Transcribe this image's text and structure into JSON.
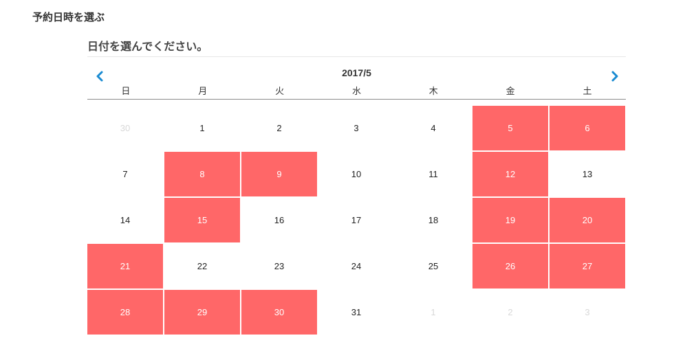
{
  "page": {
    "heading": "予約日時を選ぶ",
    "section_title": "日付を選んでください。"
  },
  "calendar": {
    "month_label": "2017/5",
    "prev_icon": "chevron-left-icon",
    "next_icon": "chevron-right-icon",
    "accent_color": "#1a8bd2",
    "available_color": "#ff6768",
    "weekdays": [
      "日",
      "月",
      "火",
      "水",
      "木",
      "金",
      "土"
    ],
    "days": [
      {
        "label": "30",
        "state": "other"
      },
      {
        "label": "1",
        "state": "normal"
      },
      {
        "label": "2",
        "state": "normal"
      },
      {
        "label": "3",
        "state": "normal"
      },
      {
        "label": "4",
        "state": "normal"
      },
      {
        "label": "5",
        "state": "available"
      },
      {
        "label": "6",
        "state": "available"
      },
      {
        "label": "7",
        "state": "normal"
      },
      {
        "label": "8",
        "state": "available"
      },
      {
        "label": "9",
        "state": "available"
      },
      {
        "label": "10",
        "state": "normal"
      },
      {
        "label": "11",
        "state": "normal"
      },
      {
        "label": "12",
        "state": "available"
      },
      {
        "label": "13",
        "state": "normal"
      },
      {
        "label": "14",
        "state": "normal"
      },
      {
        "label": "15",
        "state": "available"
      },
      {
        "label": "16",
        "state": "normal"
      },
      {
        "label": "17",
        "state": "normal"
      },
      {
        "label": "18",
        "state": "normal"
      },
      {
        "label": "19",
        "state": "available"
      },
      {
        "label": "20",
        "state": "available"
      },
      {
        "label": "21",
        "state": "available"
      },
      {
        "label": "22",
        "state": "normal"
      },
      {
        "label": "23",
        "state": "normal"
      },
      {
        "label": "24",
        "state": "normal"
      },
      {
        "label": "25",
        "state": "normal"
      },
      {
        "label": "26",
        "state": "available"
      },
      {
        "label": "27",
        "state": "available"
      },
      {
        "label": "28",
        "state": "available"
      },
      {
        "label": "29",
        "state": "available"
      },
      {
        "label": "30",
        "state": "available"
      },
      {
        "label": "31",
        "state": "normal"
      },
      {
        "label": "1",
        "state": "other"
      },
      {
        "label": "2",
        "state": "other"
      },
      {
        "label": "3",
        "state": "other"
      }
    ]
  }
}
